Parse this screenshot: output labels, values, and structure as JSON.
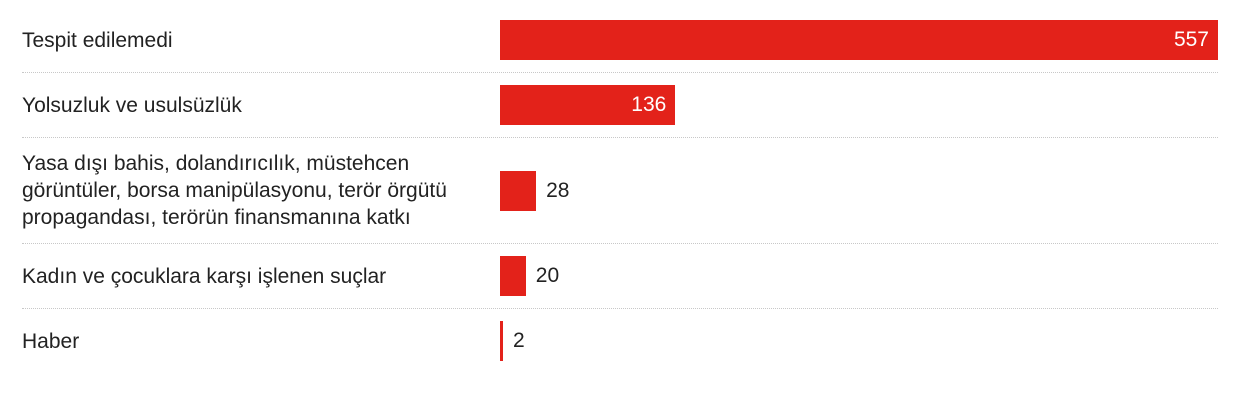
{
  "chart_data": {
    "type": "bar",
    "orientation": "horizontal",
    "color": "#e3221a",
    "categories": [
      "Tespit edilemedi",
      "Yolsuzluk ve usulsüzlük",
      "Yasa dışı bahis, dolandırıcılık, müstehcen görüntüler, borsa manipülasyonu, terör örgütü propagandası, terörün finansmanına katkı",
      "Kadın ve çocuklara karşı işlenen suçlar",
      "Haber"
    ],
    "values": [
      557,
      136,
      28,
      20,
      2
    ]
  }
}
